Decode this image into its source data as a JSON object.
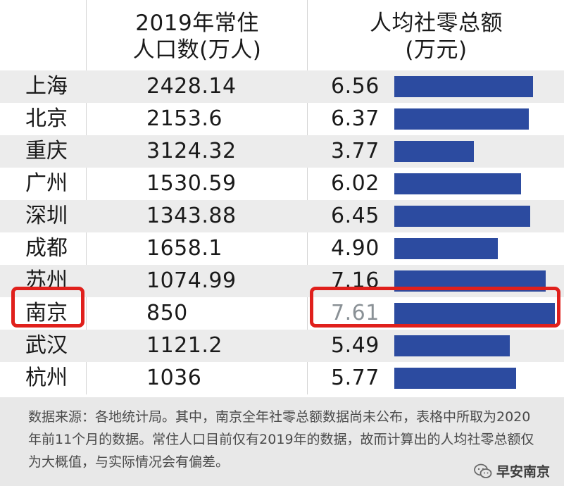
{
  "chart_data": {
    "type": "table",
    "columns": [
      "",
      "2019年常住\n人口数(万人)",
      "人均社零总额\n(万元)"
    ],
    "rows": [
      {
        "city": "上海",
        "population": "2428.14",
        "per_capita": "6.56",
        "value": 6.56
      },
      {
        "city": "北京",
        "population": "2153.6",
        "per_capita": "6.37",
        "value": 6.37
      },
      {
        "city": "重庆",
        "population": "3124.32",
        "per_capita": "3.77",
        "value": 3.77
      },
      {
        "city": "广州",
        "population": "1530.59",
        "per_capita": "6.02",
        "value": 6.02
      },
      {
        "city": "深圳",
        "population": "1343.88",
        "per_capita": "6.45",
        "value": 6.45
      },
      {
        "city": "成都",
        "population": "1658.1",
        "per_capita": "4.90",
        "value": 4.9
      },
      {
        "city": "苏州",
        "population": "1074.99",
        "per_capita": "7.16",
        "value": 7.16
      },
      {
        "city": "南京",
        "population": "850",
        "per_capita": "7.61",
        "value": 7.61,
        "highlighted": true
      },
      {
        "city": "武汉",
        "population": "1121.2",
        "per_capita": "5.49",
        "value": 5.49
      },
      {
        "city": "杭州",
        "population": "1036",
        "per_capita": "5.77",
        "value": 5.77
      }
    ],
    "bar_color": "#2c4ba0",
    "highlight_color": "#e0201c"
  },
  "header": {
    "population_line1": "2019年常住",
    "population_line2": "人口数(万人)",
    "per_capita_line1": "人均社零总额",
    "per_capita_line2": "(万元)"
  },
  "footer": {
    "note": "数据来源：各地统计局。其中，南京全年社零总额数据尚未公布，表格中所取为2020年前11个月的数据。常住人口目前仅有2019年的数据，故而计算出的人均社零总额仅为大概值，与实际情况会有偏差。",
    "brand": "早安南京",
    "brand_icon": "wechat-icon"
  }
}
